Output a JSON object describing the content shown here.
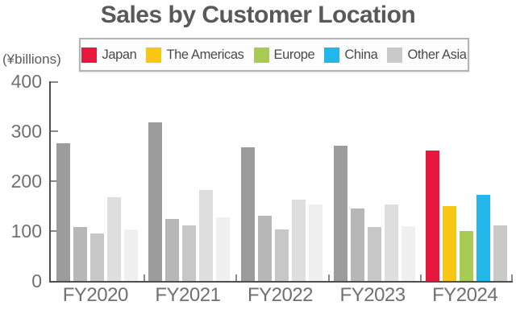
{
  "title": "Sales by Customer Location",
  "y_axis_unit": "(¥billions)",
  "colors": {
    "title_text": "#595959",
    "axis": "#4f4f4f",
    "tick": "#8a8a8a",
    "tick_label": "#707070",
    "legend_border": "#b3b3b3",
    "japan_red": "#e8173d",
    "americas_yellow": "#f9c616",
    "europe_green": "#a8cb53",
    "china_cyan": "#23b6eb",
    "other_asia_gray": "#c9c9c9"
  },
  "legend": {
    "items": [
      "Japan",
      "The Americas",
      "Europe",
      "China",
      "Other Asia"
    ]
  },
  "chart_data": {
    "type": "bar",
    "title": "Sales by Customer Location",
    "ylabel": "(¥billions)",
    "xlabel": "",
    "ylim": [
      0,
      400
    ],
    "yticks": [
      0,
      100,
      200,
      300,
      400
    ],
    "grid": false,
    "legend_position": "top",
    "categories": [
      "FY2020",
      "FY2021",
      "FY2022",
      "FY2023",
      "FY2024"
    ],
    "colored_category": "FY2024",
    "series": [
      {
        "name": "Japan",
        "color": "#e8173d",
        "historical_color": "#9c9c9c",
        "texture": "solid",
        "values": [
          275,
          318,
          268,
          271,
          261
        ]
      },
      {
        "name": "The Americas",
        "color": "#f9c616",
        "historical_color": "#b7b7b7",
        "texture": "stripe",
        "values": [
          108,
          124,
          130,
          145,
          150
        ]
      },
      {
        "name": "Europe",
        "color": "#a8cb53",
        "historical_color": "#c7c7c7",
        "texture": "stripe-light",
        "values": [
          95,
          111,
          103,
          108,
          100
        ]
      },
      {
        "name": "China",
        "color": "#23b6eb",
        "historical_color": "#dedede",
        "texture": "diamond",
        "values": [
          167,
          182,
          163,
          153,
          173
        ]
      },
      {
        "name": "Other Asia",
        "color": "#c9c9c9",
        "historical_color": "#f0f0f0",
        "texture": "diamond-light",
        "values": [
          103,
          127,
          154,
          110,
          112
        ]
      }
    ]
  }
}
